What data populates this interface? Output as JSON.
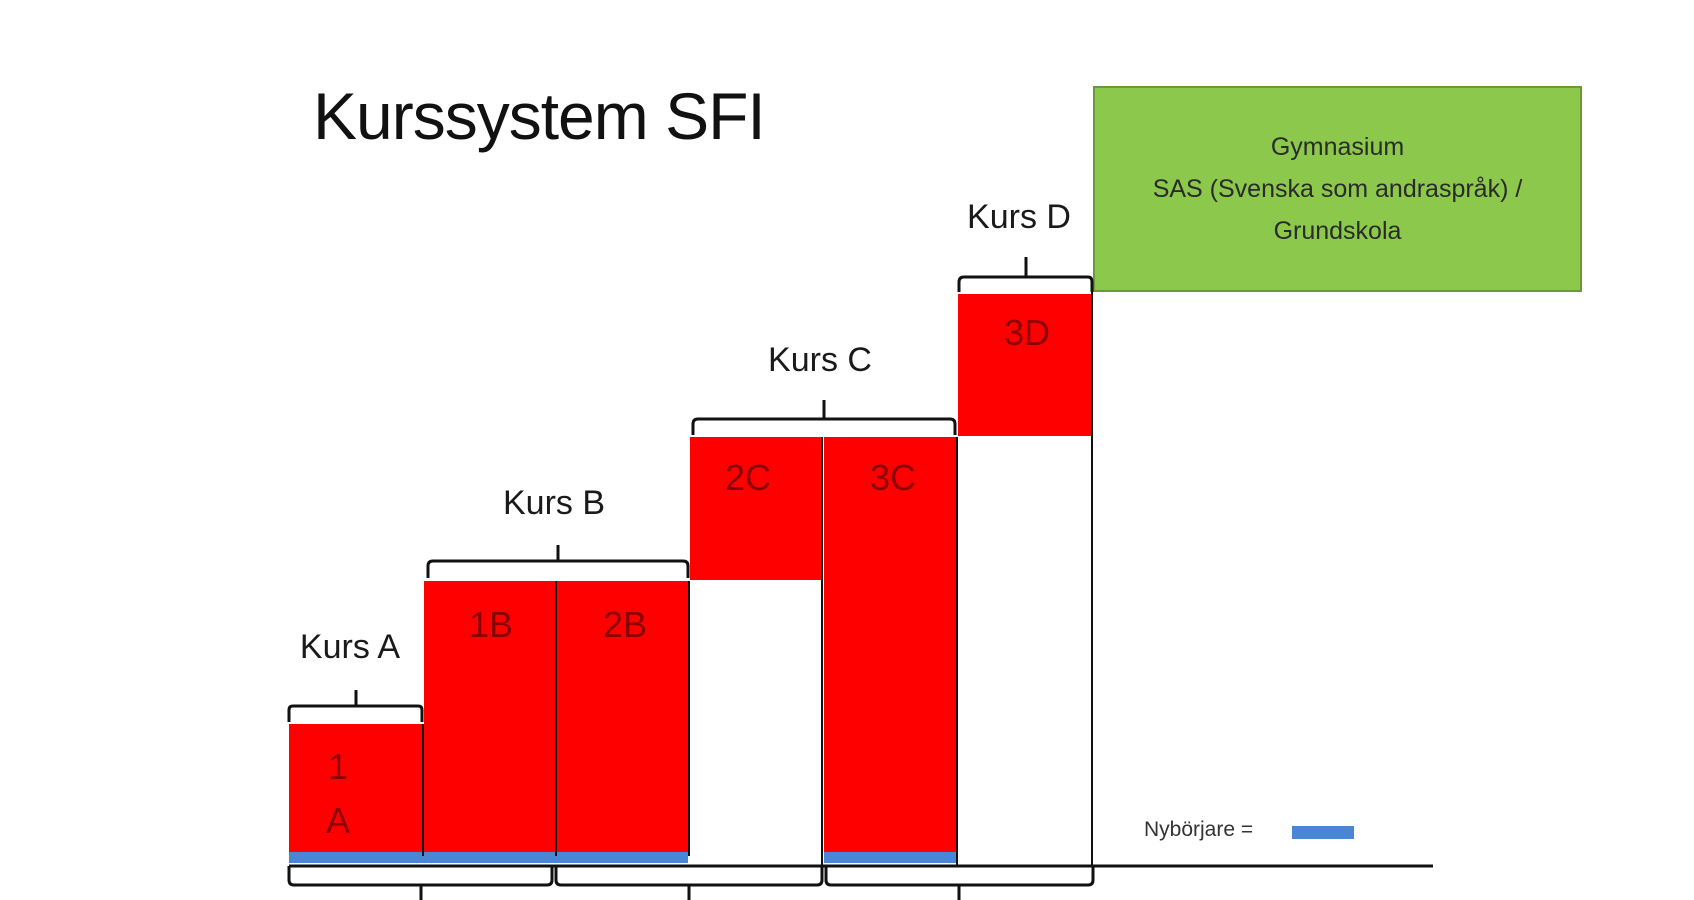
{
  "title": "Kurssystem SFI",
  "destination": {
    "line1": "Gymnasium",
    "line2": "SAS (Svenska som andraspråk) /",
    "line3": "Grundskola"
  },
  "courses": {
    "a": "Kurs A",
    "b": "Kurs B",
    "c": "Kurs C",
    "d": "Kurs D"
  },
  "blocks": {
    "b1a_line1": "1",
    "b1a_line2": "A",
    "b1b": "1B",
    "b2b": "2B",
    "b2c": "2C",
    "b3c": "3C",
    "b3d": "3D"
  },
  "legend": {
    "label": "Nybörjare =",
    "color": "#4a86d8"
  },
  "colors": {
    "block": "#ff0000",
    "destination": "#8cc84b",
    "beginner": "#4a86d8"
  }
}
